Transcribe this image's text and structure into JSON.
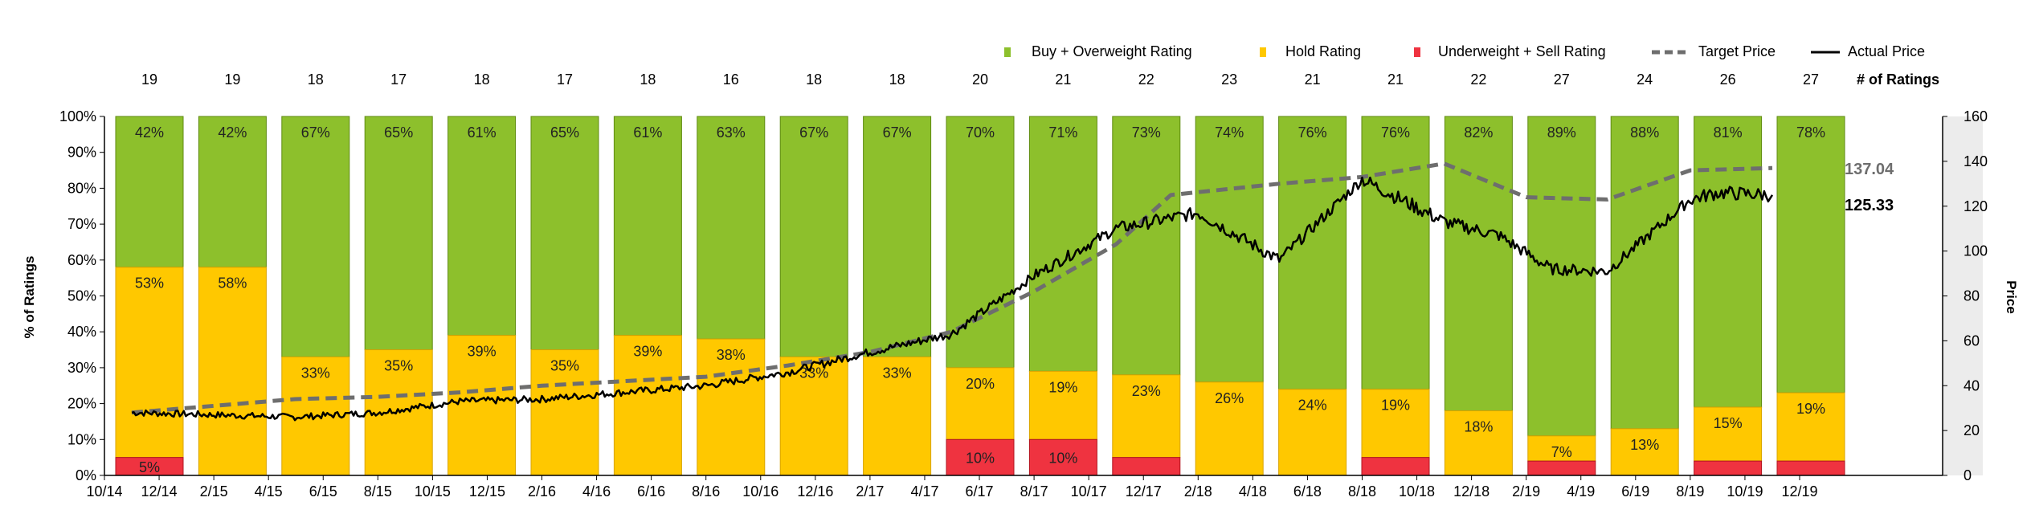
{
  "chart_data": {
    "type": "bar",
    "stacked": true,
    "legend_placement": "top-right",
    "legend": {
      "buy": "Buy + Overweight Rating",
      "hold": "Hold Rating",
      "sell": "Underweight + Sell Rating",
      "target": "Target Price",
      "actual": "Actual Price",
      "count_header": "# of Ratings"
    },
    "colors": {
      "buy": "#8dc02c",
      "hold": "#ffc800",
      "sell": "#ef3340",
      "target": "#6e6e6e",
      "actual": "#000000",
      "shade": "#ececec"
    },
    "ylabel_left": "% of Ratings",
    "ylabel_right": "Price",
    "y_left_ticks": [
      "0%",
      "10%",
      "20%",
      "30%",
      "40%",
      "50%",
      "60%",
      "70%",
      "80%",
      "90%",
      "100%"
    ],
    "y_right_ticks": [
      "0",
      "20",
      "40",
      "60",
      "80",
      "100",
      "120",
      "140",
      "160"
    ],
    "y_right_range": [
      0,
      160
    ],
    "x_ticks": [
      "10/14",
      "12/14",
      "2/15",
      "4/15",
      "6/15",
      "8/15",
      "10/15",
      "12/15",
      "2/16",
      "4/16",
      "6/16",
      "8/16",
      "10/16",
      "12/16",
      "2/17",
      "4/17",
      "6/17",
      "8/17",
      "10/17",
      "12/17",
      "2/18",
      "4/18",
      "6/18",
      "8/18",
      "10/18",
      "12/18",
      "2/19",
      "4/19",
      "6/19",
      "8/19",
      "10/19",
      "12/19"
    ],
    "periods": [
      {
        "count": "19",
        "buy": 42,
        "hold": 53,
        "sell": 5,
        "buy_label": "42%",
        "hold_label": "53%",
        "sell_label": "5%"
      },
      {
        "count": "19",
        "buy": 42,
        "hold": 58,
        "sell": 0,
        "buy_label": "42%",
        "hold_label": "58%",
        "sell_label": ""
      },
      {
        "count": "18",
        "buy": 67,
        "hold": 33,
        "sell": 0,
        "buy_label": "67%",
        "hold_label": "33%",
        "sell_label": ""
      },
      {
        "count": "17",
        "buy": 65,
        "hold": 35,
        "sell": 0,
        "buy_label": "65%",
        "hold_label": "35%",
        "sell_label": ""
      },
      {
        "count": "18",
        "buy": 61,
        "hold": 39,
        "sell": 0,
        "buy_label": "61%",
        "hold_label": "39%",
        "sell_label": ""
      },
      {
        "count": "17",
        "buy": 65,
        "hold": 35,
        "sell": 0,
        "buy_label": "65%",
        "hold_label": "35%",
        "sell_label": ""
      },
      {
        "count": "18",
        "buy": 61,
        "hold": 39,
        "sell": 0,
        "buy_label": "61%",
        "hold_label": "39%",
        "sell_label": ""
      },
      {
        "count": "16",
        "buy": 63,
        "hold": 38,
        "sell": 0,
        "buy_label": "63%",
        "hold_label": "38%",
        "sell_label": ""
      },
      {
        "count": "18",
        "buy": 67,
        "hold": 33,
        "sell": 0,
        "buy_label": "67%",
        "hold_label": "33%",
        "sell_label": ""
      },
      {
        "count": "18",
        "buy": 67,
        "hold": 33,
        "sell": 0,
        "buy_label": "67%",
        "hold_label": "33%",
        "sell_label": ""
      },
      {
        "count": "20",
        "buy": 70,
        "hold": 20,
        "sell": 10,
        "buy_label": "70%",
        "hold_label": "20%",
        "sell_label": "10%"
      },
      {
        "count": "21",
        "buy": 71,
        "hold": 19,
        "sell": 10,
        "buy_label": "71%",
        "hold_label": "19%",
        "sell_label": "10%"
      },
      {
        "count": "22",
        "buy": 73,
        "hold": 23,
        "sell": 5,
        "buy_label": "73%",
        "hold_label": "23%",
        "sell_label": ""
      },
      {
        "count": "23",
        "buy": 74,
        "hold": 26,
        "sell": 0,
        "buy_label": "74%",
        "hold_label": "26%",
        "sell_label": ""
      },
      {
        "count": "21",
        "buy": 76,
        "hold": 24,
        "sell": 0,
        "buy_label": "76%",
        "hold_label": "24%",
        "sell_label": ""
      },
      {
        "count": "21",
        "buy": 76,
        "hold": 19,
        "sell": 5,
        "buy_label": "76%",
        "hold_label": "19%",
        "sell_label": ""
      },
      {
        "count": "22",
        "buy": 82,
        "hold": 18,
        "sell": 0,
        "buy_label": "82%",
        "hold_label": "18%",
        "sell_label": ""
      },
      {
        "count": "27",
        "buy": 89,
        "hold": 7,
        "sell": 4,
        "buy_label": "89%",
        "hold_label": "7%",
        "sell_label": ""
      },
      {
        "count": "24",
        "buy": 88,
        "hold": 13,
        "sell": 0,
        "buy_label": "88%",
        "hold_label": "13%",
        "sell_label": ""
      },
      {
        "count": "26",
        "buy": 81,
        "hold": 15,
        "sell": 4,
        "buy_label": "81%",
        "hold_label": "15%",
        "sell_label": ""
      },
      {
        "count": "27",
        "buy": 78,
        "hold": 19,
        "sell": 4,
        "buy_label": "78%",
        "hold_label": "19%",
        "sell_label": ""
      }
    ],
    "target_price": {
      "dates": [
        "2014-10-31",
        "2015-01-31",
        "2015-04-30",
        "2015-07-31",
        "2015-10-31",
        "2016-01-31",
        "2016-04-30",
        "2016-07-31",
        "2016-10-31",
        "2017-01-31",
        "2017-04-30",
        "2017-07-31",
        "2017-10-31",
        "2017-12-31",
        "2018-04-30",
        "2018-07-31",
        "2018-10-31",
        "2019-01-31",
        "2019-04-30",
        "2019-07-31",
        "2019-10-31"
      ],
      "values": [
        28,
        31,
        34,
        35,
        37,
        40,
        42,
        44,
        49,
        55,
        64,
        82,
        103,
        125,
        130,
        133,
        139,
        124,
        123,
        136,
        137
      ]
    },
    "actual_price": {
      "dates": [
        "2014-10-31",
        "2015-01-31",
        "2015-04-30",
        "2015-07-31",
        "2015-10-31",
        "2016-01-31",
        "2016-04-30",
        "2016-07-31",
        "2016-10-31",
        "2017-01-31",
        "2017-04-30",
        "2017-07-31",
        "2017-10-31",
        "2018-01-31",
        "2018-04-30",
        "2018-07-31",
        "2018-10-31",
        "2018-12-31",
        "2019-02-28",
        "2019-04-30",
        "2019-07-31",
        "2019-08-31",
        "2019-10-31"
      ],
      "values": [
        28,
        27,
        26,
        28,
        33,
        34,
        37,
        40,
        46,
        55,
        63,
        89,
        110,
        117,
        96,
        132,
        113,
        107,
        92,
        91,
        123,
        126,
        125
      ]
    },
    "price_labels": {
      "target": "137.04",
      "actual": "125.33"
    }
  }
}
